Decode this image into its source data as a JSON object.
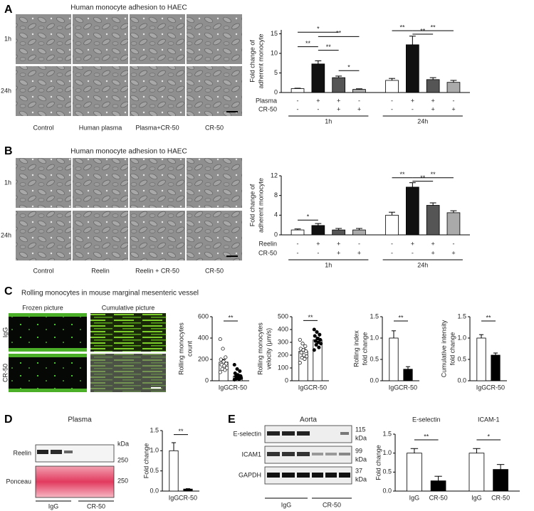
{
  "panels": {
    "A": {
      "label": "A",
      "title": "Human monocyte adhesion to HAEC",
      "rows": [
        "1h",
        "24h"
      ],
      "columns": [
        "Control",
        "Human plasma",
        "Plasma+CR-50",
        "CR-50"
      ]
    },
    "B": {
      "label": "B",
      "title": "Human monocyte adhesion to HAEC",
      "rows": [
        "1h",
        "24h"
      ],
      "columns": [
        "Control",
        "Reelin",
        "Reelin + CR-50",
        "CR-50"
      ]
    },
    "C": {
      "label": "C",
      "title": "Rolling monocytes in mouse marginal mesenteric vessel",
      "image_headers": [
        "Frozen picture",
        "Cumulative picture"
      ],
      "rows": [
        "IgG",
        "CR-50"
      ]
    },
    "D": {
      "label": "D",
      "title": "Plasma",
      "blots": [
        "Reelin",
        "Ponceau"
      ],
      "markers": [
        "kDa",
        "250",
        "250"
      ],
      "groups": [
        "IgG",
        "CR-50"
      ]
    },
    "E": {
      "label": "E",
      "title": "Aorta",
      "blots": [
        "E-selectin",
        "ICAM1",
        "GAPDH"
      ],
      "markers": [
        "115",
        "kDa",
        "99",
        "kDa",
        "37",
        "kDa"
      ],
      "groups": [
        "IgG",
        "CR-50"
      ]
    }
  },
  "chart_data": [
    {
      "type": "bar",
      "ylabel": [
        "Fold change of",
        "adherent monocyte"
      ],
      "categories": [
        null,
        null,
        null,
        null,
        null,
        null,
        null,
        null
      ],
      "values": [
        1,
        7.3,
        3.8,
        0.8,
        3.1,
        12.2,
        3.3,
        2.6
      ],
      "errors": [
        0.1,
        0.8,
        0.4,
        0.15,
        0.5,
        2.2,
        0.5,
        0.5
      ],
      "colors": [
        "#ffffff",
        "#111111",
        "#555555",
        "#aaaaaa",
        "#ffffff",
        "#111111",
        "#555555",
        "#aaaaaa"
      ],
      "ylim": [
        0,
        16
      ],
      "yticks": [
        0,
        5,
        10,
        15
      ],
      "groups": [
        "1h",
        "24h"
      ],
      "conditions": [
        {
          "name": "Plasma",
          "signs": [
            "-",
            "+",
            "+",
            "-",
            "-",
            "+",
            "+",
            "-"
          ]
        },
        {
          "name": "CR-50",
          "signs": [
            "-",
            "-",
            "+",
            "+",
            "-",
            "-",
            "+",
            "+"
          ]
        }
      ],
      "significance": [
        "*",
        "**",
        "**",
        "**",
        "*",
        "**",
        "**",
        "**"
      ]
    },
    {
      "type": "bar",
      "ylabel": [
        "Fold change of",
        "adherent monocyte"
      ],
      "categories": [
        null,
        null,
        null,
        null,
        null,
        null,
        null,
        null
      ],
      "values": [
        1,
        1.9,
        1.0,
        1.0,
        4.0,
        9.7,
        6.0,
        4.5
      ],
      "errors": [
        0.2,
        0.4,
        0.3,
        0.3,
        0.6,
        0.9,
        0.5,
        0.4
      ],
      "colors": [
        "#ffffff",
        "#111111",
        "#555555",
        "#aaaaaa",
        "#ffffff",
        "#111111",
        "#555555",
        "#aaaaaa"
      ],
      "ylim": [
        0,
        12
      ],
      "yticks": [
        0,
        4,
        8,
        12
      ],
      "groups": [
        "1h",
        "24h"
      ],
      "conditions": [
        {
          "name": "Reelin",
          "signs": [
            "-",
            "+",
            "+",
            "-",
            "-",
            "+",
            "+",
            "-"
          ]
        },
        {
          "name": "CR-50",
          "signs": [
            "-",
            "-",
            "+",
            "+",
            "-",
            "-",
            "+",
            "+"
          ]
        }
      ],
      "significance": [
        "*",
        "**",
        "**",
        "**"
      ]
    },
    {
      "type": "bar",
      "ylabel": [
        "Rolling monocytes",
        "count"
      ],
      "categories": [
        "IgG",
        "CR-50"
      ],
      "values": [
        175,
        45
      ],
      "errors": [
        25,
        15
      ],
      "colors": [
        "#ffffff",
        "#ffffff"
      ],
      "point_colors": [
        "#ffffff",
        "#000000"
      ],
      "points": [
        [
          390,
          300,
          220,
          200,
          180,
          160,
          150,
          140,
          120,
          110,
          100,
          80
        ],
        [
          150,
          110,
          90,
          70,
          55,
          45,
          40,
          30,
          25,
          20,
          15,
          10
        ]
      ],
      "ylim": [
        0,
        600
      ],
      "yticks": [
        0,
        200,
        400,
        600
      ],
      "significance": [
        "**"
      ]
    },
    {
      "type": "bar",
      "ylabel": [
        "Rolling monocytes",
        "velocity (μm/s)"
      ],
      "categories": [
        "IgG",
        "CR-50"
      ],
      "values": [
        230,
        320
      ],
      "errors": [
        20,
        20
      ],
      "colors": [
        "#ffffff",
        "#ffffff"
      ],
      "point_colors": [
        "#ffffff",
        "#000000"
      ],
      "points": [
        [
          320,
          290,
          270,
          250,
          240,
          230,
          220,
          200,
          190,
          180,
          170,
          140
        ],
        [
          400,
          380,
          360,
          350,
          330,
          320,
          310,
          300,
          290,
          280,
          260,
          240
        ]
      ],
      "ylim": [
        0,
        500
      ],
      "yticks": [
        0,
        100,
        200,
        300,
        400,
        500
      ],
      "significance": [
        "**"
      ]
    },
    {
      "type": "bar",
      "ylabel": [
        "Rolling index",
        "fold change"
      ],
      "categories": [
        "IgG",
        "CR-50"
      ],
      "values": [
        1.0,
        0.27
      ],
      "errors": [
        0.17,
        0.06
      ],
      "colors": [
        "#ffffff",
        "#000000"
      ],
      "ylim": [
        0,
        1.5
      ],
      "yticks": [
        {
          "value": 0,
          "label": "0.0"
        },
        0.5,
        {
          "value": 1,
          "label": "1.0"
        },
        1.5
      ],
      "significance": [
        "**"
      ]
    },
    {
      "type": "bar",
      "ylabel": [
        "Cumulative intensity",
        "fold change"
      ],
      "categories": [
        "IgG",
        "CR-50"
      ],
      "values": [
        1.0,
        0.6
      ],
      "errors": [
        0.08,
        0.05
      ],
      "colors": [
        "#ffffff",
        "#000000"
      ],
      "ylim": [
        0,
        1.5
      ],
      "yticks": [
        {
          "value": 0,
          "label": "0.0"
        },
        0.5,
        {
          "value": 1,
          "label": "1.0"
        },
        1.5
      ],
      "significance": [
        "**"
      ]
    },
    {
      "type": "bar",
      "ylabel": [
        "Fold change"
      ],
      "categories": [
        "IgG",
        "CR-50"
      ],
      "values": [
        1.0,
        0.05
      ],
      "errors": [
        0.2,
        0.01
      ],
      "colors": [
        "#ffffff",
        "#000000"
      ],
      "ylim": [
        0,
        1.5
      ],
      "yticks": [
        {
          "value": 0,
          "label": "0.0"
        },
        0.5,
        {
          "value": 1,
          "label": "1.0"
        },
        1.5
      ],
      "significance": [
        "**"
      ]
    },
    {
      "type": "bar",
      "ylabel": [
        "Fold change"
      ],
      "categories": [
        "IgG",
        "CR-50",
        "IgG",
        "CR-50"
      ],
      "groups": [
        "E-selectin",
        "ICAM-1"
      ],
      "values": [
        1.0,
        0.27,
        1.0,
        0.57
      ],
      "errors": [
        0.12,
        0.12,
        0.12,
        0.13
      ],
      "colors": [
        "#ffffff",
        "#000000",
        "#ffffff",
        "#000000"
      ],
      "ylim": [
        0,
        1.5
      ],
      "yticks": [
        {
          "value": 0,
          "label": "0.0"
        },
        0.5,
        {
          "value": 1,
          "label": "1.0"
        },
        1.5
      ],
      "significance": [
        "**",
        "*"
      ]
    }
  ]
}
